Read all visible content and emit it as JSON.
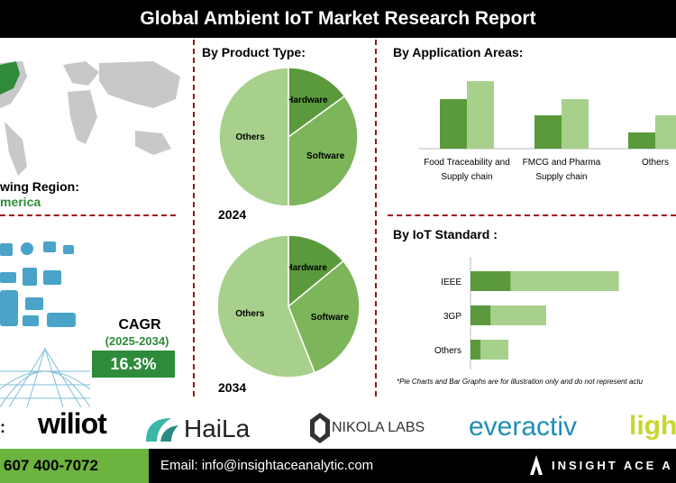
{
  "title": "Global Ambient IoT Market Research Report",
  "region": {
    "label": "wing Region:",
    "value": "merica"
  },
  "product_type": {
    "title": "By Product Type:",
    "years": [
      "2024",
      "2034"
    ]
  },
  "application": {
    "title": "By  Application Areas:"
  },
  "iot_standard": {
    "title": "By IoT Standard :",
    "note": "*Pie Charts and Bar Graphs are for illustration only and do not represent actu"
  },
  "cagr": {
    "label": "CAGR",
    "period": "(2025-2034)",
    "value": "16.3%"
  },
  "companies_prefix": ":",
  "logos": [
    "wiliot",
    "HaiLa",
    "NIKOLA LABS",
    "everactiv",
    "ligh"
  ],
  "footer": {
    "phone": "607 400-7072",
    "email": "Email: info@insightaceanalytic.com",
    "brand": "INSIGHT ACE A"
  },
  "colors": {
    "dark_green": "#5a9a3c",
    "mid_green": "#7db55a",
    "light_green": "#a8d08d",
    "accent_red": "#a01010",
    "cagr_green": "#2e8b3a"
  },
  "chart_data": [
    {
      "type": "pie",
      "title": "2024",
      "categories": [
        "Hardware",
        "Software",
        "Others"
      ],
      "values": [
        15,
        35,
        50
      ]
    },
    {
      "type": "pie",
      "title": "2034",
      "categories": [
        "Hardware",
        "Software",
        "Others"
      ],
      "values": [
        14,
        30,
        56
      ]
    },
    {
      "type": "bar",
      "categories": [
        "Food Traceability and Supply chain",
        "FMCG and Pharma Supply chain",
        "Others"
      ],
      "series": [
        {
          "values": [
            55,
            37,
            18
          ]
        },
        {
          "values": [
            75,
            55,
            37
          ]
        }
      ]
    },
    {
      "type": "bar",
      "orientation": "horizontal",
      "categories": [
        "IEEE",
        "3GP",
        "Others"
      ],
      "series": [
        {
          "values": [
            48,
            24,
            12
          ]
        },
        {
          "values": [
            98,
            50,
            25
          ]
        }
      ]
    }
  ]
}
